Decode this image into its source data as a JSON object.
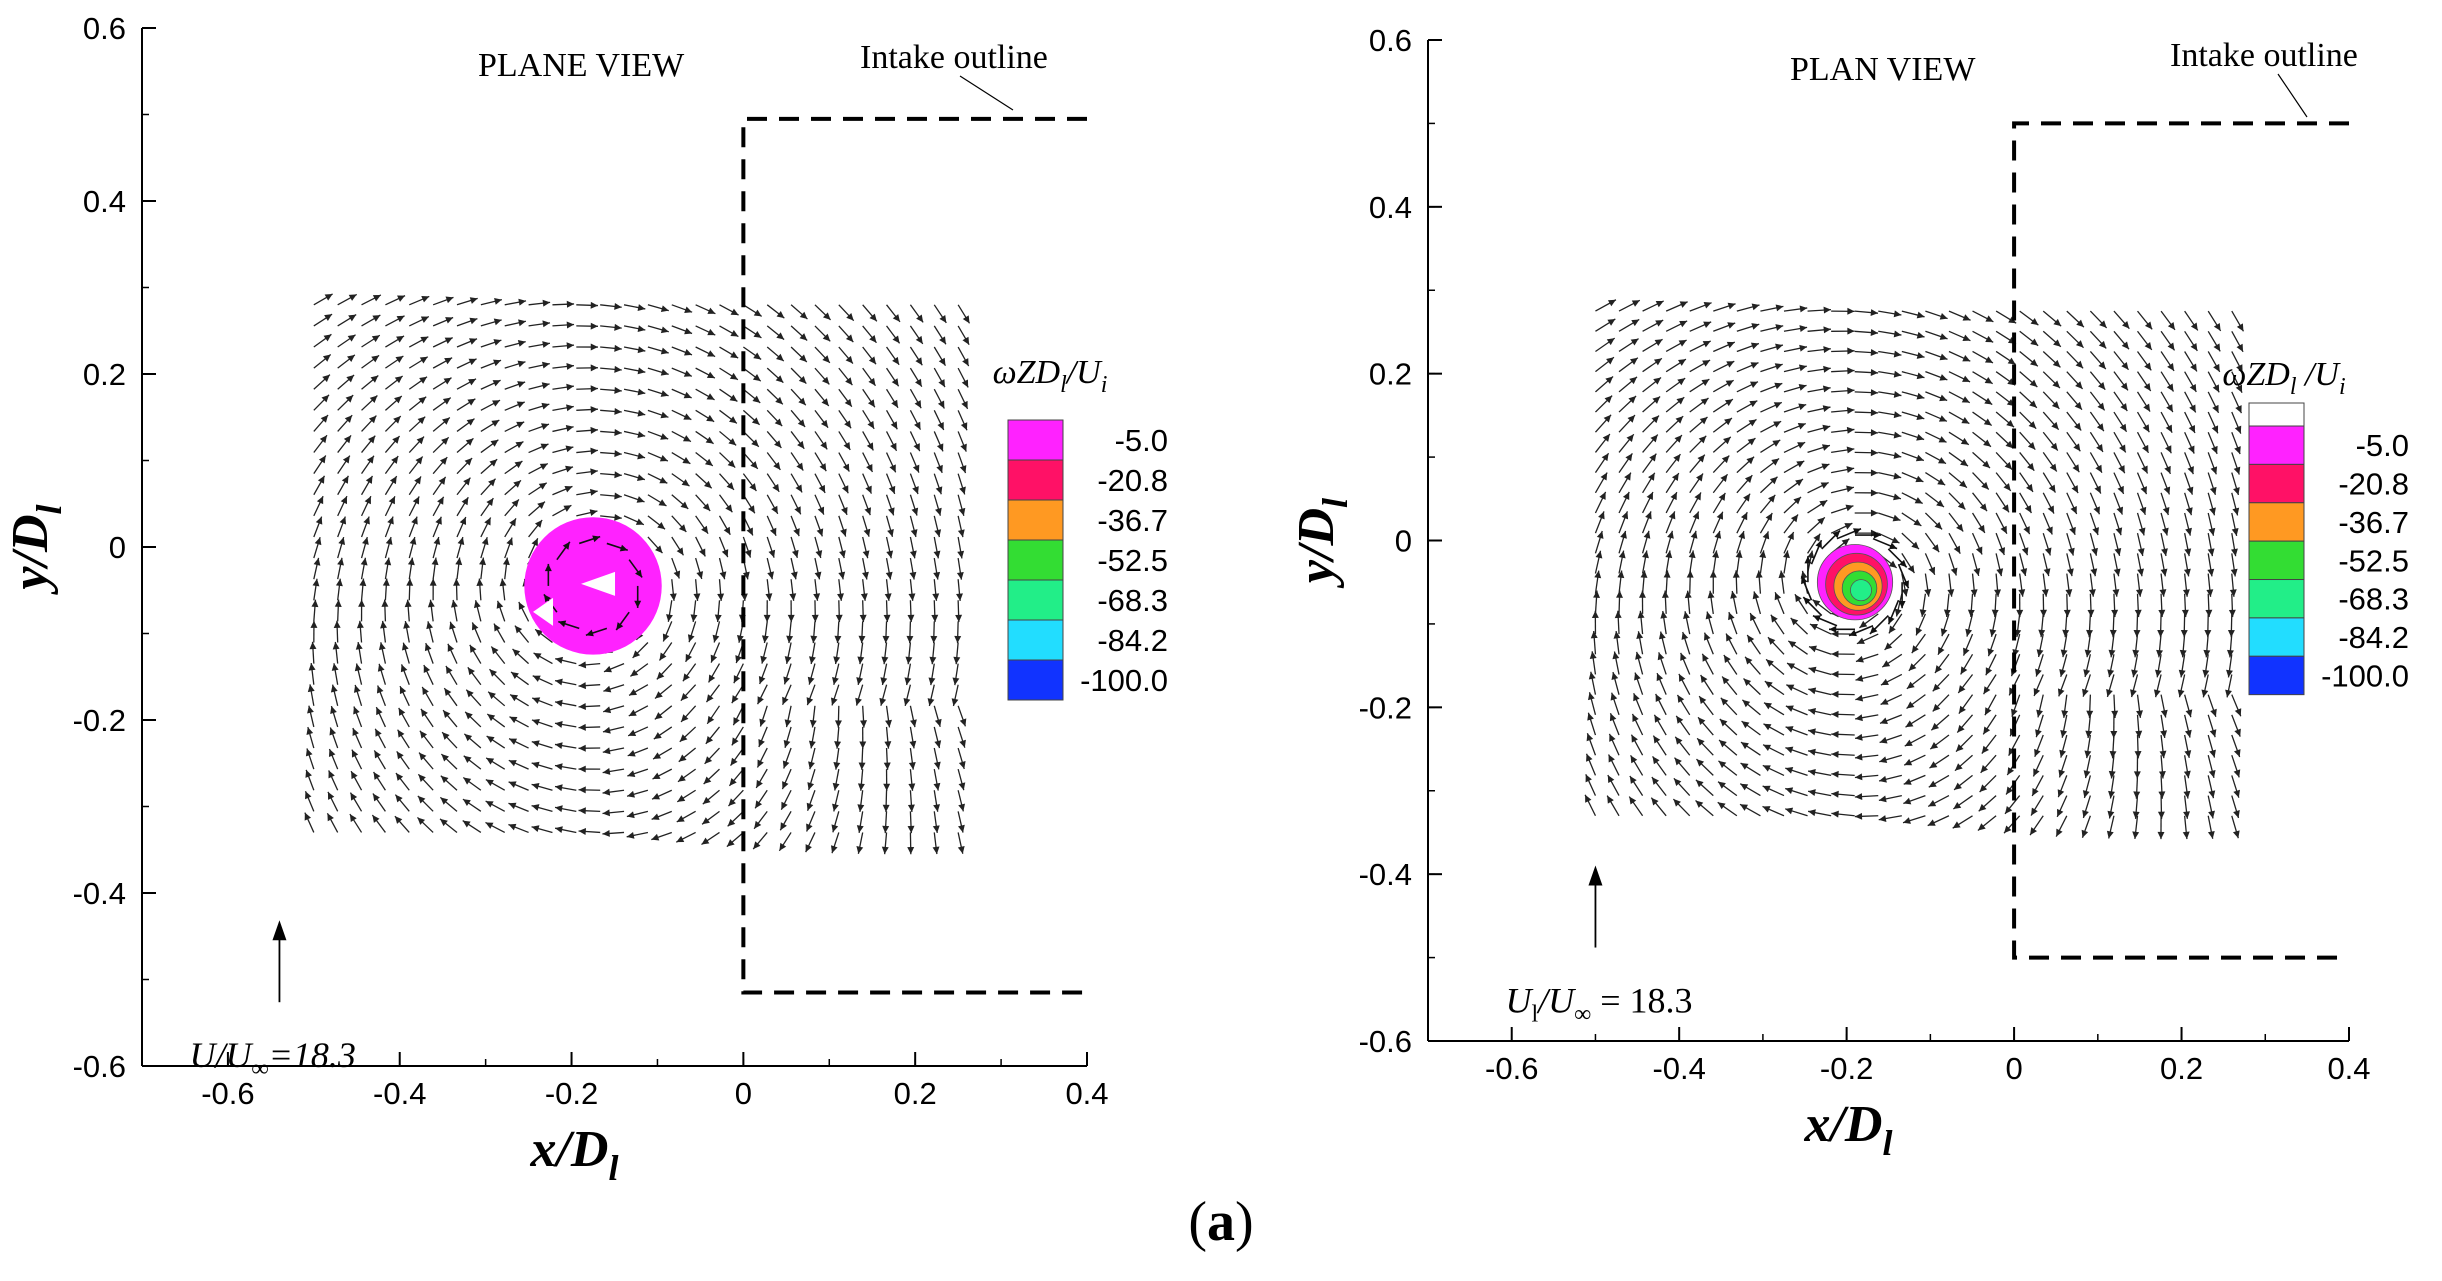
{
  "caption": {
    "open": "(",
    "letter": "a",
    "close": ")"
  },
  "colors": {
    "vector": "#222222",
    "outline": "#000000"
  },
  "chart_data": [
    {
      "type": "vector-field",
      "title": "PLANE VIEW",
      "annotation": "Intake outline",
      "xlabel_main": "x/D",
      "xlabel_sub": "l",
      "ylabel_main": "y/D",
      "ylabel_sub": "l",
      "xlim": [
        -0.7,
        0.4
      ],
      "ylim": [
        -0.6,
        0.6
      ],
      "xticks": [
        -0.6,
        -0.4,
        -0.2,
        0,
        0.2,
        0.4
      ],
      "xtick_labels": [
        "-0.6",
        "-0.4",
        "-0.2",
        "0",
        "0.2",
        "0.4"
      ],
      "yticks": [
        -0.6,
        -0.4,
        -0.2,
        0,
        0.2,
        0.4,
        0.6
      ],
      "ytick_labels": [
        "-0.6",
        "-0.4",
        "-0.2",
        "0",
        "0.2",
        "0.4",
        "0.6"
      ],
      "field_x_range": [
        -0.5,
        0.25
      ],
      "field_y_range": [
        -0.33,
        0.28
      ],
      "vortex_center": [
        -0.175,
        -0.045
      ],
      "vortex_core_radius": 0.08,
      "intake_outline": [
        [
          0.4,
          0.495
        ],
        [
          0,
          0.495
        ],
        [
          0,
          -0.515
        ],
        [
          0.4,
          -0.515
        ]
      ],
      "legend": {
        "title_main": "ωZD",
        "title_sub1": "l",
        "title_mid": "/U",
        "title_sub2": "i",
        "levels": [
          "-5.0",
          "-20.8",
          "-36.7",
          "-52.5",
          "-68.3",
          "-84.2",
          "-100.0"
        ],
        "colors": [
          "#ff22ff",
          "#ff1166",
          "#ff9922",
          "#33dd33",
          "#22ee88",
          "#22ddff",
          "#1133ff"
        ],
        "top_white": false
      },
      "reference": {
        "pos": [
          -0.54,
          -0.48
        ],
        "label_main": "U/U",
        "label_sub": "∞",
        "label_value": "=18.3",
        "italic": true
      }
    },
    {
      "type": "vector-field",
      "title": "PLAN VIEW",
      "annotation": "Intake outline",
      "xlabel_main": "x/D",
      "xlabel_sub": "l",
      "ylabel_main": "y/D",
      "ylabel_sub": "l",
      "xlim": [
        -0.7,
        0.4
      ],
      "ylim": [
        -0.6,
        0.6
      ],
      "xticks": [
        -0.6,
        -0.4,
        -0.2,
        0,
        0.2,
        0.4
      ],
      "xtick_labels": [
        "-0.6",
        "-0.4",
        "-0.2",
        "0",
        "0.2",
        "0.4"
      ],
      "yticks": [
        -0.6,
        -0.4,
        -0.2,
        0,
        0.2,
        0.4,
        0.6
      ],
      "ytick_labels": [
        "-0.6",
        "-0.4",
        "-0.2",
        "0",
        "0.2",
        "0.4",
        "0.6"
      ],
      "field_x_range": [
        -0.5,
        0.26
      ],
      "field_y_range": [
        -0.33,
        0.275
      ],
      "vortex_center": [
        -0.19,
        -0.05
      ],
      "vortex_core_radius": 0.045,
      "intake_outline": [
        [
          0.4,
          0.5
        ],
        [
          0,
          0.5
        ],
        [
          0,
          -0.5
        ],
        [
          0.4,
          -0.5
        ]
      ],
      "legend": {
        "title_main": "ωZD",
        "title_sub1": "l",
        "title_mid": " /U",
        "title_sub2": "i",
        "levels": [
          "-5.0",
          "-20.8",
          "-36.7",
          "-52.5",
          "-68.3",
          "-84.2",
          "-100.0"
        ],
        "colors": [
          "#ff22ff",
          "#ff1166",
          "#ff9922",
          "#33dd33",
          "#22ee88",
          "#22ddff",
          "#1133ff"
        ],
        "top_white": true
      },
      "reference": {
        "pos": [
          -0.5,
          -0.44
        ],
        "label_main": "U",
        "label_sub": "l",
        "label_mid": "/U",
        "label_sub2": "∞",
        "label_value": " = 18.3",
        "italic": false
      }
    }
  ]
}
